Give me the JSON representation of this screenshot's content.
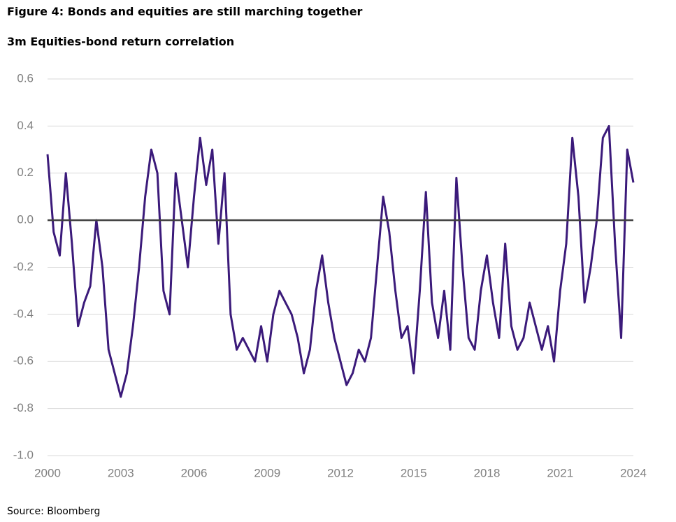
{
  "chart_data": {
    "type": "line",
    "title": "Figure 4: Bonds and equities are still marching together",
    "subtitle": "3m Equities-bond return correlation",
    "source": "Source: Bloomberg",
    "xlim": [
      2000,
      2024
    ],
    "xticks": [
      2000,
      2003,
      2006,
      2009,
      2012,
      2015,
      2018,
      2021,
      2024
    ],
    "ylim": [
      -1,
      0.6
    ],
    "yticks": [
      0.6,
      0.4,
      0.2,
      {
        "value": 0,
        "label": "0.0"
      },
      -0.2,
      -0.4,
      -0.6,
      -0.8,
      {
        "value": -1,
        "label": "-1.0"
      }
    ],
    "grid": true,
    "series": [
      {
        "color": "#3b1a7a",
        "x": [
          2000,
          2000.25,
          2000.5,
          2000.75,
          2001,
          2001.25,
          2001.5,
          2001.75,
          2002,
          2002.25,
          2002.5,
          2002.75,
          2003,
          2003.25,
          2003.5,
          2003.75,
          2004,
          2004.25,
          2004.5,
          2004.75,
          2005,
          2005.25,
          2005.5,
          2005.75,
          2006,
          2006.25,
          2006.5,
          2006.75,
          2007,
          2007.25,
          2007.5,
          2007.75,
          2008,
          2008.25,
          2008.5,
          2008.75,
          2009,
          2009.25,
          2009.5,
          2009.75,
          2010,
          2010.25,
          2010.5,
          2010.75,
          2011,
          2011.25,
          2011.5,
          2011.75,
          2012,
          2012.25,
          2012.5,
          2012.75,
          2013,
          2013.25,
          2013.5,
          2013.75,
          2014,
          2014.25,
          2014.5,
          2014.75,
          2015,
          2015.25,
          2015.5,
          2015.75,
          2016,
          2016.25,
          2016.5,
          2016.75,
          2017,
          2017.25,
          2017.5,
          2017.75,
          2018,
          2018.25,
          2018.5,
          2018.75,
          2019,
          2019.25,
          2019.5,
          2019.75,
          2020,
          2020.25,
          2020.5,
          2020.75,
          2021,
          2021.25,
          2021.5,
          2021.75,
          2022,
          2022.25,
          2022.5,
          2022.75,
          2023,
          2023.25,
          2023.5,
          2023.75,
          2024
        ],
        "values": [
          0.28,
          -0.05,
          -0.15,
          0.2,
          -0.1,
          -0.45,
          -0.35,
          -0.28,
          0.0,
          -0.2,
          -0.55,
          -0.65,
          -0.75,
          -0.65,
          -0.45,
          -0.2,
          0.1,
          0.3,
          0.2,
          -0.3,
          -0.4,
          0.2,
          0.0,
          -0.2,
          0.1,
          0.35,
          0.15,
          0.3,
          -0.1,
          0.2,
          -0.4,
          -0.55,
          -0.5,
          -0.55,
          -0.6,
          -0.45,
          -0.6,
          -0.4,
          -0.3,
          -0.35,
          -0.4,
          -0.5,
          -0.65,
          -0.55,
          -0.3,
          -0.15,
          -0.35,
          -0.5,
          -0.6,
          -0.7,
          -0.65,
          -0.55,
          -0.6,
          -0.5,
          -0.2,
          0.1,
          -0.05,
          -0.3,
          -0.5,
          -0.45,
          -0.65,
          -0.3,
          0.12,
          -0.35,
          -0.5,
          -0.3,
          -0.55,
          0.18,
          -0.2,
          -0.5,
          -0.55,
          -0.3,
          -0.15,
          -0.35,
          -0.5,
          -0.1,
          -0.45,
          -0.55,
          -0.5,
          -0.35,
          -0.45,
          -0.55,
          -0.45,
          -0.6,
          -0.3,
          -0.1,
          0.35,
          0.1,
          -0.35,
          -0.2,
          0.0,
          0.35,
          0.4,
          -0.1,
          -0.5,
          0.3,
          0.16
        ]
      }
    ]
  }
}
